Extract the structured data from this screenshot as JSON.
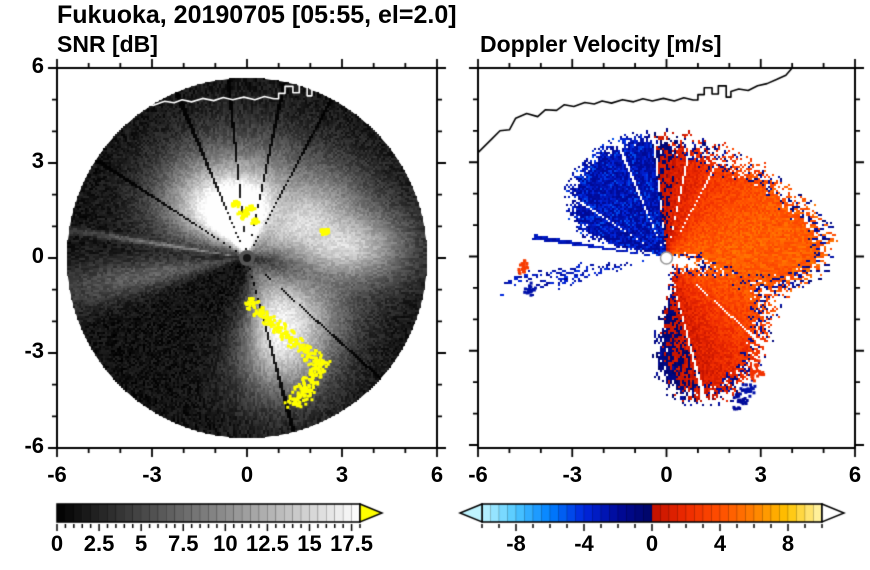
{
  "title": "Fukuoka, 20190705 [05:55, el=2.0]",
  "panels": [
    {
      "subtitle": "SNR [dB]",
      "x_tick_labels": [
        "-6",
        "-3",
        "0",
        "3",
        "6"
      ],
      "x_tick_values": [
        -6,
        -3,
        0,
        3,
        6
      ],
      "y_tick_labels": [
        "6",
        "3",
        "0",
        "-3",
        "-6"
      ],
      "y_tick_values": [
        6,
        3,
        0,
        -3,
        -6
      ],
      "colorbar": {
        "labels": [
          "0",
          "2.5",
          "5",
          "7.5",
          "10",
          "12.5",
          "15",
          "17.5"
        ],
        "values": [
          0,
          2.5,
          5,
          7.5,
          10,
          12.5,
          15,
          17.5
        ],
        "min": 0,
        "max": 18,
        "type": "grayscale",
        "overflow_arrow_color": "#ffff00"
      }
    },
    {
      "subtitle": "Doppler Velocity [m/s]",
      "x_tick_labels": [
        "-6",
        "-3",
        "0",
        "3",
        "6"
      ],
      "x_tick_values": [
        -6,
        -3,
        0,
        3,
        6
      ],
      "colorbar": {
        "labels": [
          "-8",
          "-4",
          "0",
          "4",
          "8"
        ],
        "values": [
          -8,
          -4,
          0,
          4,
          8
        ],
        "min": -10,
        "max": 10,
        "type": "diverging",
        "arrows": "both"
      }
    }
  ],
  "chart_data": {
    "type": "radar_ppi_pair",
    "site": "Fukuoka",
    "date": "20190705",
    "time": "05:55",
    "elevation_deg": 2.0,
    "axis_range_km": [
      -6,
      6
    ],
    "scan_radius_km": 5.68,
    "panels": [
      {
        "name": "SNR",
        "units": "dB",
        "colormap": "black-to-white 0-18 dB, yellow overflow above 18"
      },
      {
        "name": "Doppler Velocity",
        "units": "m/s",
        "colormap": "cyan/blue/navy negative (toward radar, NW wedge), red/orange/yellow positive (away, E-SE region), range -10..10"
      }
    ],
    "velocity_stops": [
      [
        -10,
        "#bff4ff"
      ],
      [
        -8,
        "#4fc8ff"
      ],
      [
        -6,
        "#0080ff"
      ],
      [
        -4,
        "#0026dd"
      ],
      [
        -2,
        "#000a99"
      ],
      [
        -0.01,
        "#000566"
      ],
      [
        0.01,
        "#c01000"
      ],
      [
        2,
        "#ee2a00"
      ],
      [
        4,
        "#ff4e00"
      ],
      [
        6,
        "#ff8000"
      ],
      [
        8,
        "#ffc400"
      ],
      [
        10,
        "#fff6b0"
      ]
    ],
    "snr_regions": [
      [
        90,
        38,
        1.6,
        1.5,
        12.5
      ],
      [
        97,
        22,
        0.9,
        0.9,
        15.5
      ],
      [
        28,
        18,
        2.2,
        1.4,
        10.5
      ],
      [
        4,
        11,
        3.5,
        1.3,
        9
      ],
      [
        315,
        24,
        2.1,
        1.3,
        11.5
      ],
      [
        288,
        16,
        2.9,
        1.3,
        10
      ],
      [
        190,
        6,
        3.2,
        2.4,
        5.2
      ],
      [
        135,
        20,
        1.7,
        1.3,
        9
      ],
      [
        171,
        1,
        2,
        3,
        5.5
      ]
    ],
    "spokes": [
      [
        62,
        1.0
      ],
      [
        78,
        1.3
      ],
      [
        96,
        1.1
      ],
      [
        113,
        1.6
      ],
      [
        147,
        1.2
      ],
      [
        285,
        1.4
      ],
      [
        318,
        1.0
      ]
    ],
    "overflow_spots": [
      [
        0.15,
        -1.45,
        0.18
      ],
      [
        0.45,
        -1.75,
        0.2
      ],
      [
        0.7,
        -1.95,
        0.18
      ],
      [
        1.0,
        -2.2,
        0.22
      ],
      [
        1.3,
        -2.45,
        0.2
      ],
      [
        1.55,
        -2.7,
        0.22
      ],
      [
        1.85,
        -2.95,
        0.2
      ],
      [
        2.1,
        -3.15,
        0.25
      ],
      [
        2.35,
        -3.35,
        0.22
      ],
      [
        2.2,
        -3.6,
        0.2
      ],
      [
        2.0,
        -3.85,
        0.22
      ],
      [
        1.85,
        -4.1,
        0.25
      ],
      [
        1.7,
        -4.35,
        0.3
      ],
      [
        1.55,
        -4.6,
        0.25
      ],
      [
        -0.1,
        1.35,
        0.15
      ],
      [
        0.1,
        1.55,
        0.12
      ],
      [
        0.25,
        1.15,
        0.1
      ],
      [
        -0.35,
        1.7,
        0.1
      ],
      [
        2.45,
        0.85,
        0.12
      ]
    ],
    "doppler": {
      "wind_toward_deg": 5,
      "vmax": 4.6,
      "noise": 2.2,
      "snr_threshold": 5.5,
      "blue_wedge": [
        97,
        168
      ],
      "white_gap": [
        168,
        183
      ],
      "west_patch": [
        183,
        215
      ],
      "streak_az": 171,
      "extra_patches": [
        [
          -4.55,
          -0.32,
          0.18,
          3
        ],
        [
          -4.35,
          -1.05,
          0.2,
          -2.5
        ],
        [
          2.6,
          -4.2,
          0.3,
          -2.5
        ],
        [
          2.9,
          -3.6,
          0.25,
          2.5
        ],
        [
          2.35,
          -4.55,
          0.28,
          -2
        ]
      ]
    },
    "coastline": [
      [
        -6,
        3.35
      ],
      [
        -5.55,
        3.8
      ],
      [
        -5.3,
        4.05
      ],
      [
        -5.0,
        4.08
      ],
      [
        -4.8,
        4.45
      ],
      [
        -4.45,
        4.6
      ],
      [
        -4.1,
        4.5
      ],
      [
        -3.85,
        4.72
      ],
      [
        -3.5,
        4.7
      ],
      [
        -3.25,
        4.88
      ],
      [
        -2.95,
        4.82
      ],
      [
        -2.6,
        4.95
      ],
      [
        -2.3,
        4.9
      ],
      [
        -2.05,
        5.0
      ],
      [
        -1.75,
        4.93
      ],
      [
        -1.4,
        5.04
      ],
      [
        -1.05,
        4.97
      ],
      [
        -0.75,
        5.07
      ],
      [
        -0.45,
        5.0
      ],
      [
        -0.1,
        5.08
      ],
      [
        0.25,
        5.0
      ],
      [
        0.55,
        5.1
      ],
      [
        0.85,
        5.03
      ],
      [
        1.0,
        5.03
      ],
      [
        1.0,
        5.2
      ],
      [
        1.2,
        5.2
      ],
      [
        1.2,
        5.42
      ],
      [
        1.45,
        5.42
      ],
      [
        1.45,
        5.22
      ],
      [
        1.65,
        5.22
      ],
      [
        1.65,
        5.48
      ],
      [
        1.9,
        5.48
      ],
      [
        1.9,
        5.12
      ],
      [
        2.05,
        5.12
      ],
      [
        2.05,
        5.3
      ],
      [
        2.3,
        5.38
      ],
      [
        2.6,
        5.33
      ],
      [
        2.9,
        5.48
      ],
      [
        3.2,
        5.55
      ],
      [
        3.5,
        5.68
      ],
      [
        3.8,
        5.82
      ],
      [
        4.0,
        6.05
      ]
    ]
  }
}
